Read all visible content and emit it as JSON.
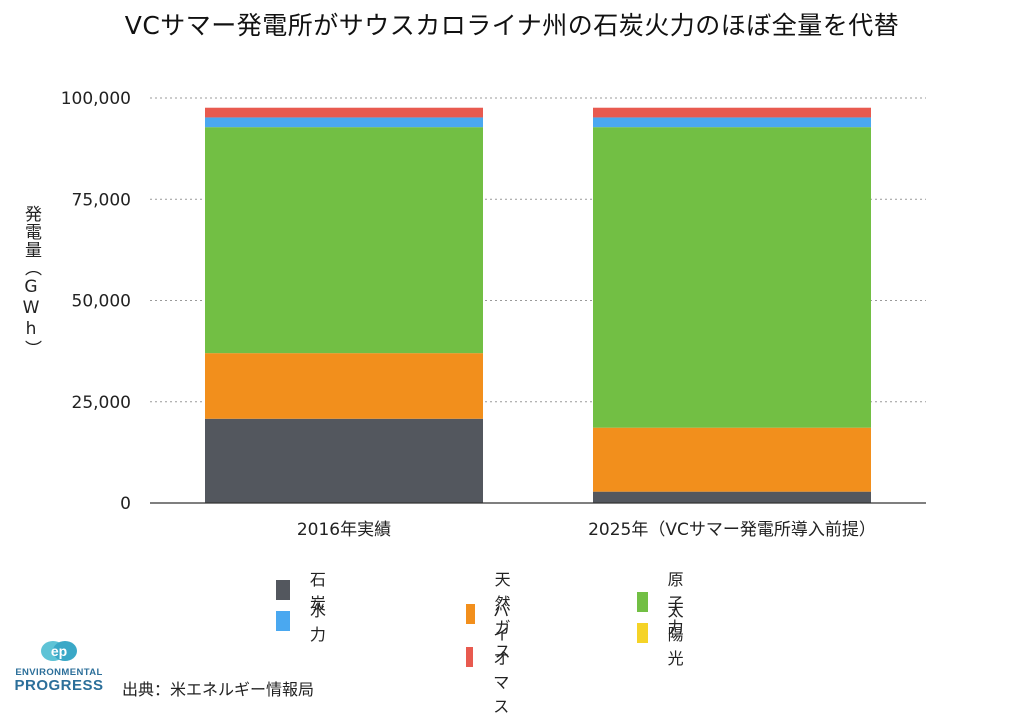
{
  "title": "VCサマー発電所がサウスカロライナ州の石炭火力のほぼ全量を代替",
  "ylabel": "発電量（GWh）",
  "source": "出典：米エネルギー情報局",
  "logo": {
    "line1": "ENVIRONMENTAL",
    "line2": "PROGRESS"
  },
  "chart_data": {
    "type": "bar",
    "stacked": true,
    "title": "VCサマー発電所がサウスカロライナ州の石炭火力のほぼ全量を代替",
    "xlabel": "",
    "ylabel": "発電量（GWh）",
    "ylim": [
      0,
      100000
    ],
    "yticks": [
      0,
      25000,
      50000,
      75000,
      100000
    ],
    "ytick_labels": [
      "0",
      "25,000",
      "50,000",
      "75,000",
      "100,000"
    ],
    "grid": true,
    "legend_position": "bottom",
    "categories": [
      "2016年実績",
      "2025年（VCサマー発電所導入前提）"
    ],
    "series": [
      {
        "name": "石炭",
        "color": "#53575e",
        "values": [
          20800,
          2800
        ]
      },
      {
        "name": "天然ガス",
        "color": "#f28f1c",
        "values": [
          16200,
          15800
        ]
      },
      {
        "name": "原子力",
        "color": "#72bf44",
        "values": [
          55800,
          74200
        ]
      },
      {
        "name": "水力",
        "color": "#4aa8f0",
        "values": [
          2400,
          2400
        ]
      },
      {
        "name": "バイオマス",
        "color": "#e85a4f",
        "values": [
          2400,
          2400
        ]
      },
      {
        "name": "太陽光",
        "color": "#f5d327",
        "values": [
          0,
          0
        ]
      }
    ]
  }
}
